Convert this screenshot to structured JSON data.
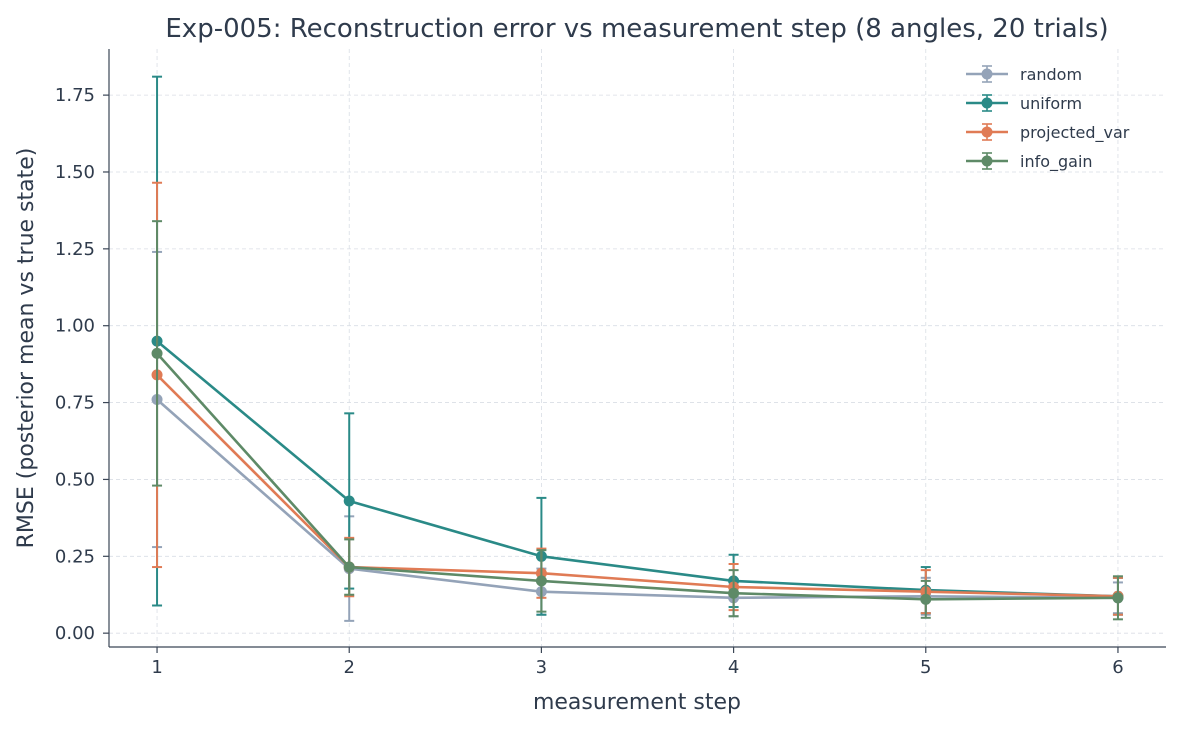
{
  "chart_data": {
    "type": "line",
    "title": "Exp-005: Reconstruction error vs measurement step (8 angles, 20 trials)",
    "xlabel": "measurement step",
    "ylabel": "RMSE (posterior mean vs true state)",
    "x": [
      1,
      2,
      3,
      4,
      5,
      6
    ],
    "xlim": [
      0.75,
      6.25
    ],
    "ylim": [
      -0.045,
      1.9
    ],
    "x_ticks": [
      "1",
      "2",
      "3",
      "4",
      "5",
      "6"
    ],
    "y_ticks": [
      "0.00",
      "0.25",
      "0.50",
      "0.75",
      "1.00",
      "1.25",
      "1.50",
      "1.75"
    ],
    "grid": true,
    "error_bars": true,
    "legend_position": "top-right",
    "series": [
      {
        "name": "random",
        "color": "#94a3b8",
        "values": [
          0.76,
          0.21,
          0.135,
          0.115,
          0.12,
          0.115
        ],
        "error": [
          0.48,
          0.17,
          0.075,
          0.06,
          0.06,
          0.05
        ]
      },
      {
        "name": "uniform",
        "color": "#2a8a87",
        "values": [
          0.95,
          0.43,
          0.25,
          0.17,
          0.14,
          0.12
        ],
        "error": [
          0.86,
          0.285,
          0.19,
          0.085,
          0.075,
          0.06
        ]
      },
      {
        "name": "projected_var",
        "color": "#e07b55",
        "values": [
          0.84,
          0.215,
          0.195,
          0.15,
          0.135,
          0.12
        ],
        "error": [
          0.625,
          0.095,
          0.08,
          0.075,
          0.07,
          0.06
        ]
      },
      {
        "name": "info_gain",
        "color": "#5e8a67",
        "values": [
          0.91,
          0.215,
          0.17,
          0.13,
          0.11,
          0.115
        ],
        "error": [
          0.43,
          0.09,
          0.1,
          0.075,
          0.06,
          0.07
        ]
      }
    ]
  }
}
